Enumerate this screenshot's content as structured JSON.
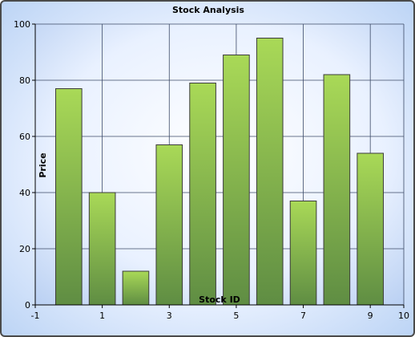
{
  "chart_data": {
    "type": "bar",
    "title": "Stock Analysis",
    "xlabel": "Stock ID",
    "ylabel": "Price",
    "x": [
      0,
      1,
      2,
      3,
      4,
      5,
      6,
      7,
      8,
      9
    ],
    "values": [
      77,
      40,
      12,
      57,
      79,
      89,
      95,
      37,
      82,
      54
    ],
    "xlim": [
      -1,
      10
    ],
    "ylim": [
      0,
      100
    ],
    "xticks": [
      -1,
      1,
      3,
      5,
      7,
      9,
      10
    ],
    "yticks": [
      0,
      20,
      40,
      60,
      80,
      100
    ],
    "grid": true,
    "colors": {
      "bar_top": "#a9d957",
      "bar_bottom": "#5f8d43",
      "bar_stroke": "#3c3c3c",
      "grid": "#3c4a66",
      "plot_top": "#e9f1ff",
      "plot_bottom": "#b8cff2"
    }
  }
}
